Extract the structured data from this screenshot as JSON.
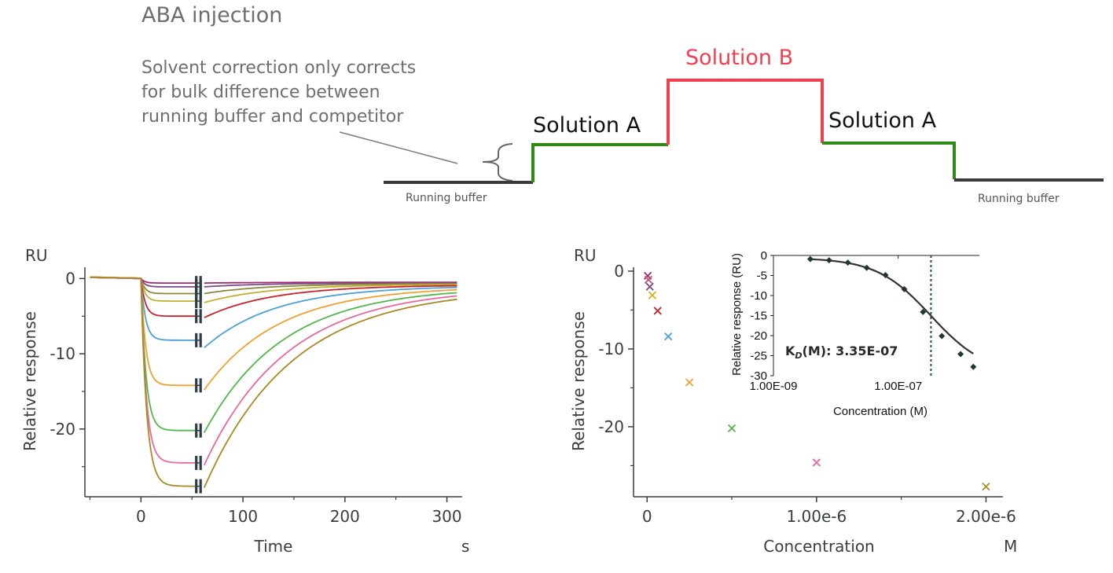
{
  "diagram": {
    "title": "ABA injection",
    "note_lines": [
      "Solvent correction only corrects",
      "for bulk difference between",
      "running buffer and competitor"
    ],
    "labels": {
      "running_buffer_left": "Running buffer",
      "solution_a_left": "Solution A",
      "solution_b": "Solution B",
      "solution_a_right": "Solution A",
      "running_buffer_right": "Running buffer"
    },
    "colors": {
      "baseline": "#3a3a3a",
      "solution_a": "#2e8b17",
      "solution_b": "#f04050",
      "text": "#6e6e6e"
    }
  },
  "chart_data": [
    {
      "type": "line",
      "unit_label": "RU",
      "ylabel": "Relative response",
      "xlabel": "Time",
      "x_unit": "s",
      "xlim": [
        -55,
        315
      ],
      "ylim": [
        -29,
        1.5
      ],
      "x_ticks": [
        0,
        100,
        200,
        300
      ],
      "x_tick_labels": [
        "0",
        "100",
        "200",
        "300"
      ],
      "y_ticks": [
        0,
        -10,
        -20
      ],
      "y_tick_labels": [
        "0",
        "-10",
        "-20"
      ],
      "injection_start": 0,
      "injection_end": 55,
      "series": [
        {
          "color": "#a02a6a",
          "plateau": -0.6,
          "dissoc_start": -0.6
        },
        {
          "color": "#7a4a8a",
          "plateau": -1.1,
          "dissoc_start": -1.1
        },
        {
          "color": "#8a8a3a",
          "plateau": -2.0,
          "dissoc_start": -2.0
        },
        {
          "color": "#c4b030",
          "plateau": -3.0,
          "dissoc_start": -3.2
        },
        {
          "color": "#c8222c",
          "plateau": -5.0,
          "dissoc_start": -5.2
        },
        {
          "color": "#4aa0d8",
          "plateau": -8.2,
          "dissoc_start": -9.2
        },
        {
          "color": "#f0a030",
          "plateau": -14.2,
          "dissoc_start": -14.8
        },
        {
          "color": "#4fb848",
          "plateau": -20.2,
          "dissoc_start": -20.5
        },
        {
          "color": "#e868a0",
          "plateau": -24.5,
          "dissoc_start": -24.8
        },
        {
          "color": "#a88a20",
          "plateau": -27.6,
          "dissoc_start": -27.8
        }
      ]
    },
    {
      "type": "scatter",
      "unit_label": "RU",
      "ylabel": "Relative response",
      "xlabel": "Concentration",
      "x_unit": "M",
      "xlim": [
        -8e-08,
        2.1e-06
      ],
      "ylim": [
        -29,
        0.5
      ],
      "x_ticks": [
        0,
        1e-06,
        2e-06
      ],
      "x_tick_labels": [
        "0",
        "1.00e-6",
        "2.00e-6"
      ],
      "y_ticks": [
        0,
        -10,
        -20
      ],
      "y_tick_labels": [
        "0",
        "-10",
        "-20"
      ],
      "points": [
        {
          "x": 4e-09,
          "y": -0.6,
          "color": "#a02a6a"
        },
        {
          "x": 8e-09,
          "y": -1.1,
          "color": "#c05070"
        },
        {
          "x": 1.6e-08,
          "y": -2.0,
          "color": "#7a4a8a"
        },
        {
          "x": 3.1e-08,
          "y": -3.1,
          "color": "#d4b020"
        },
        {
          "x": 6.25e-08,
          "y": -5.1,
          "color": "#c8222c"
        },
        {
          "x": 1.25e-07,
          "y": -8.4,
          "color": "#4aa0d8"
        },
        {
          "x": 2.5e-07,
          "y": -14.3,
          "color": "#f0a030"
        },
        {
          "x": 5e-07,
          "y": -20.2,
          "color": "#4fb848"
        },
        {
          "x": 1e-06,
          "y": -24.6,
          "color": "#e868a0"
        },
        {
          "x": 2e-06,
          "y": -27.7,
          "color": "#a88a20"
        }
      ]
    },
    {
      "type": "line",
      "ylabel": "Relative response (RU)",
      "xlabel": "Concentration (M)",
      "x_scale": "log",
      "xlim": [
        1e-09,
        2e-06
      ],
      "ylim": [
        -30,
        0
      ],
      "x_ticks": [
        1e-09,
        1e-07
      ],
      "x_tick_labels": [
        "1.00E-09",
        "1.00E-07"
      ],
      "y_ticks": [
        0,
        -5,
        -10,
        -15,
        -20,
        -25,
        -30
      ],
      "y_tick_labels": [
        "0",
        "-5",
        "-10",
        "-15",
        "-20",
        "-25",
        "-30"
      ],
      "kd_label": "K",
      "kd_subscript": "D",
      "kd_rest": "(M): 3.35E-07",
      "kd_value": 3.35e-07,
      "fit_color": "#333333",
      "point_color": "#1f3a2a",
      "kd_line_color": "#1f5a3a",
      "points": [
        {
          "x": 3.9e-09,
          "y": -0.9
        },
        {
          "x": 7.8e-09,
          "y": -1.2
        },
        {
          "x": 1.56e-08,
          "y": -1.8
        },
        {
          "x": 3.13e-08,
          "y": -3.1
        },
        {
          "x": 6.25e-08,
          "y": -4.9
        },
        {
          "x": 1.25e-07,
          "y": -8.4
        },
        {
          "x": 2.5e-07,
          "y": -14.1
        },
        {
          "x": 5e-07,
          "y": -20.1
        },
        {
          "x": 1e-06,
          "y": -24.6
        },
        {
          "x": 1.6e-06,
          "y": -27.8
        }
      ],
      "fit": {
        "top": -0.6,
        "bottom": -29.5,
        "ec50": 3.35e-07,
        "hill": 1.0
      }
    }
  ]
}
